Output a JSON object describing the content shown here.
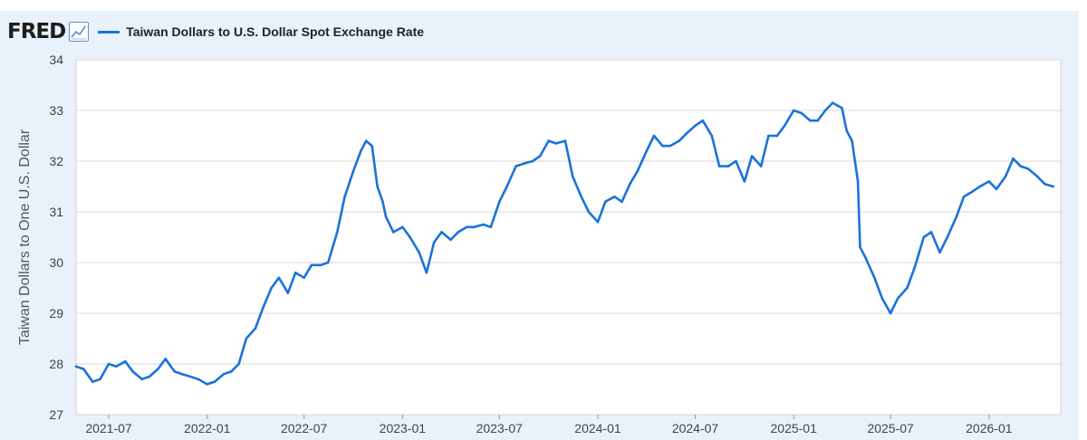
{
  "header": {
    "logo_text": "FRED",
    "logo_icon": "line-chart-icon",
    "series_label": "Taiwan Dollars to U.S. Dollar Spot Exchange Rate",
    "series_color": "#1a73d9"
  },
  "chart_data": {
    "type": "line",
    "title": "",
    "xlabel": "",
    "ylabel": "Taiwan Dollars to One U.S. Dollar",
    "ylim": [
      27,
      34
    ],
    "xlim": [
      "2021-05-01",
      "2026-05-15"
    ],
    "yticks": [
      "27",
      "28",
      "29",
      "30",
      "31",
      "32",
      "33",
      "34"
    ],
    "xticks": [
      {
        "date": "2021-07-01",
        "label": "2021-07"
      },
      {
        "date": "2022-01-01",
        "label": "2022-01"
      },
      {
        "date": "2022-07-01",
        "label": "2022-07"
      },
      {
        "date": "2023-01-01",
        "label": "2023-01"
      },
      {
        "date": "2023-07-01",
        "label": "2023-07"
      },
      {
        "date": "2024-01-01",
        "label": "2024-01"
      },
      {
        "date": "2024-07-01",
        "label": "2024-07"
      },
      {
        "date": "2025-01-01",
        "label": "2025-01"
      },
      {
        "date": "2025-07-01",
        "label": "2025-07"
      },
      {
        "date": "2026-01-01",
        "label": "2026-01"
      }
    ],
    "grid": true,
    "legend": "top-left",
    "series": [
      {
        "name": "Taiwan Dollars to U.S. Dollar Spot Exchange Rate",
        "color": "#1a73d9",
        "points": [
          [
            "2021-05-01",
            27.95
          ],
          [
            "2021-05-15",
            27.9
          ],
          [
            "2021-06-01",
            27.65
          ],
          [
            "2021-06-15",
            27.7
          ],
          [
            "2021-07-01",
            28.0
          ],
          [
            "2021-07-15",
            27.95
          ],
          [
            "2021-08-01",
            28.05
          ],
          [
            "2021-08-15",
            27.85
          ],
          [
            "2021-09-01",
            27.7
          ],
          [
            "2021-09-15",
            27.75
          ],
          [
            "2021-10-01",
            27.9
          ],
          [
            "2021-10-15",
            28.1
          ],
          [
            "2021-11-01",
            27.85
          ],
          [
            "2021-11-15",
            27.8
          ],
          [
            "2021-12-01",
            27.75
          ],
          [
            "2021-12-15",
            27.7
          ],
          [
            "2022-01-01",
            27.6
          ],
          [
            "2022-01-15",
            27.65
          ],
          [
            "2022-02-01",
            27.8
          ],
          [
            "2022-02-15",
            27.85
          ],
          [
            "2022-03-01",
            28.0
          ],
          [
            "2022-03-15",
            28.5
          ],
          [
            "2022-04-01",
            28.7
          ],
          [
            "2022-04-15",
            29.1
          ],
          [
            "2022-05-01",
            29.5
          ],
          [
            "2022-05-15",
            29.7
          ],
          [
            "2022-06-01",
            29.4
          ],
          [
            "2022-06-15",
            29.8
          ],
          [
            "2022-07-01",
            29.7
          ],
          [
            "2022-07-15",
            29.95
          ],
          [
            "2022-08-01",
            29.95
          ],
          [
            "2022-08-15",
            30.0
          ],
          [
            "2022-09-01",
            30.6
          ],
          [
            "2022-09-15",
            31.3
          ],
          [
            "2022-10-01",
            31.8
          ],
          [
            "2022-10-15",
            32.2
          ],
          [
            "2022-10-25",
            32.4
          ],
          [
            "2022-11-05",
            32.3
          ],
          [
            "2022-11-15",
            31.5
          ],
          [
            "2022-11-25",
            31.2
          ],
          [
            "2022-12-01",
            30.9
          ],
          [
            "2022-12-15",
            30.6
          ],
          [
            "2023-01-01",
            30.7
          ],
          [
            "2023-01-15",
            30.5
          ],
          [
            "2023-02-01",
            30.2
          ],
          [
            "2023-02-15",
            29.8
          ],
          [
            "2023-03-01",
            30.4
          ],
          [
            "2023-03-15",
            30.6
          ],
          [
            "2023-04-01",
            30.45
          ],
          [
            "2023-04-15",
            30.6
          ],
          [
            "2023-05-01",
            30.7
          ],
          [
            "2023-05-15",
            30.7
          ],
          [
            "2023-06-01",
            30.75
          ],
          [
            "2023-06-15",
            30.7
          ],
          [
            "2023-07-01",
            31.2
          ],
          [
            "2023-07-15",
            31.5
          ],
          [
            "2023-08-01",
            31.9
          ],
          [
            "2023-08-15",
            31.95
          ],
          [
            "2023-09-01",
            32.0
          ],
          [
            "2023-09-15",
            32.1
          ],
          [
            "2023-10-01",
            32.4
          ],
          [
            "2023-10-15",
            32.35
          ],
          [
            "2023-11-01",
            32.4
          ],
          [
            "2023-11-15",
            31.7
          ],
          [
            "2023-12-01",
            31.3
          ],
          [
            "2023-12-15",
            31.0
          ],
          [
            "2024-01-01",
            30.8
          ],
          [
            "2024-01-15",
            31.2
          ],
          [
            "2024-02-01",
            31.3
          ],
          [
            "2024-02-15",
            31.2
          ],
          [
            "2024-03-01",
            31.55
          ],
          [
            "2024-03-15",
            31.8
          ],
          [
            "2024-04-01",
            32.2
          ],
          [
            "2024-04-15",
            32.5
          ],
          [
            "2024-05-01",
            32.3
          ],
          [
            "2024-05-15",
            32.3
          ],
          [
            "2024-06-01",
            32.4
          ],
          [
            "2024-06-15",
            32.55
          ],
          [
            "2024-07-01",
            32.7
          ],
          [
            "2024-07-15",
            32.8
          ],
          [
            "2024-08-01",
            32.5
          ],
          [
            "2024-08-15",
            31.9
          ],
          [
            "2024-09-01",
            31.9
          ],
          [
            "2024-09-15",
            32.0
          ],
          [
            "2024-10-01",
            31.6
          ],
          [
            "2024-10-15",
            32.1
          ],
          [
            "2024-11-01",
            31.9
          ],
          [
            "2024-11-15",
            32.5
          ],
          [
            "2024-12-01",
            32.5
          ],
          [
            "2024-12-15",
            32.7
          ],
          [
            "2025-01-01",
            33.0
          ],
          [
            "2025-01-15",
            32.95
          ],
          [
            "2025-02-01",
            32.8
          ],
          [
            "2025-02-15",
            32.8
          ],
          [
            "2025-03-01",
            33.0
          ],
          [
            "2025-03-15",
            33.15
          ],
          [
            "2025-04-01",
            33.05
          ],
          [
            "2025-04-10",
            32.6
          ],
          [
            "2025-04-20",
            32.4
          ],
          [
            "2025-05-01",
            31.6
          ],
          [
            "2025-05-05",
            30.3
          ],
          [
            "2025-05-15",
            30.1
          ],
          [
            "2025-06-01",
            29.7
          ],
          [
            "2025-06-15",
            29.3
          ],
          [
            "2025-07-01",
            29.0
          ],
          [
            "2025-07-15",
            29.3
          ],
          [
            "2025-08-01",
            29.5
          ],
          [
            "2025-08-15",
            29.9
          ],
          [
            "2025-09-01",
            30.5
          ],
          [
            "2025-09-15",
            30.6
          ],
          [
            "2025-10-01",
            30.2
          ],
          [
            "2025-10-15",
            30.5
          ],
          [
            "2025-11-01",
            30.9
          ],
          [
            "2025-11-15",
            31.3
          ],
          [
            "2025-12-01",
            31.4
          ],
          [
            "2025-12-15",
            31.5
          ],
          [
            "2026-01-01",
            31.6
          ],
          [
            "2026-01-15",
            31.45
          ],
          [
            "2026-02-01",
            31.7
          ],
          [
            "2026-02-15",
            32.05
          ],
          [
            "2026-03-01",
            31.9
          ],
          [
            "2026-03-15",
            31.85
          ],
          [
            "2026-04-01",
            31.7
          ],
          [
            "2026-04-15",
            31.55
          ],
          [
            "2026-05-01",
            31.5
          ]
        ]
      }
    ]
  }
}
